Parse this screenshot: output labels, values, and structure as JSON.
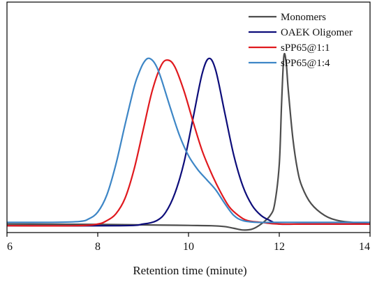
{
  "chart_data": {
    "type": "line",
    "xlabel": "Retention time (minute)",
    "ylabel": "",
    "xlim": [
      6,
      14
    ],
    "ylim": [
      -0.05,
      1.3
    ],
    "xticks": [
      "6",
      "8",
      "10",
      "12",
      "14"
    ],
    "grid": false,
    "legend_position": "top-right",
    "series": [
      {
        "name": "Monomers",
        "color": "#4d4d4d",
        "x": [
          6.0,
          8.0,
          9.0,
          10.0,
          10.5,
          10.8,
          11.0,
          11.2,
          11.4,
          11.6,
          11.8,
          11.9,
          12.0,
          12.05,
          12.1,
          12.15,
          12.2,
          12.3,
          12.4,
          12.5,
          12.7,
          13.0,
          13.3,
          13.6,
          14.0
        ],
        "y": [
          0.0,
          -0.002,
          -0.005,
          -0.008,
          -0.01,
          -0.015,
          -0.025,
          -0.035,
          -0.03,
          0.0,
          0.05,
          0.12,
          0.35,
          0.7,
          0.98,
          0.95,
          0.78,
          0.5,
          0.32,
          0.22,
          0.12,
          0.05,
          0.02,
          0.01,
          0.0
        ]
      },
      {
        "name": "OAEK Oligomer",
        "color": "#0d0d7a",
        "x": [
          6.0,
          8.5,
          9.0,
          9.3,
          9.5,
          9.7,
          9.9,
          10.1,
          10.3,
          10.45,
          10.6,
          10.8,
          11.0,
          11.2,
          11.4,
          11.6,
          11.8,
          12.0,
          12.5,
          13.0,
          14.0
        ],
        "y": [
          -0.01,
          -0.01,
          0.0,
          0.02,
          0.07,
          0.18,
          0.36,
          0.62,
          0.88,
          0.97,
          0.9,
          0.65,
          0.4,
          0.22,
          0.11,
          0.05,
          0.02,
          0.0,
          0.0,
          0.0,
          0.0
        ]
      },
      {
        "name": "sPP65@1:1",
        "color": "#e0191e",
        "x": [
          6.0,
          7.5,
          8.0,
          8.2,
          8.4,
          8.6,
          8.8,
          9.0,
          9.2,
          9.4,
          9.55,
          9.7,
          9.9,
          10.1,
          10.3,
          10.5,
          10.7,
          10.9,
          11.1,
          11.3,
          11.6,
          12.0,
          13.0,
          14.0
        ],
        "y": [
          -0.01,
          -0.01,
          0.0,
          0.02,
          0.06,
          0.15,
          0.32,
          0.55,
          0.78,
          0.93,
          0.96,
          0.92,
          0.78,
          0.6,
          0.43,
          0.3,
          0.19,
          0.1,
          0.05,
          0.02,
          0.01,
          0.0,
          0.0,
          0.0
        ]
      },
      {
        "name": "sPP65@1:4",
        "color": "#3d86c6",
        "x": [
          6.0,
          7.0,
          7.6,
          7.8,
          8.0,
          8.2,
          8.4,
          8.6,
          8.8,
          8.9,
          9.0,
          9.1,
          9.2,
          9.3,
          9.4,
          9.6,
          9.8,
          10.0,
          10.2,
          10.4,
          10.6,
          10.8,
          11.0,
          11.2,
          11.5,
          12.0,
          13.0,
          14.0
        ],
        "y": [
          0.01,
          0.01,
          0.015,
          0.03,
          0.07,
          0.17,
          0.35,
          0.58,
          0.8,
          0.88,
          0.94,
          0.97,
          0.96,
          0.92,
          0.85,
          0.68,
          0.52,
          0.4,
          0.32,
          0.26,
          0.2,
          0.12,
          0.05,
          0.02,
          0.01,
          0.01,
          0.01,
          0.01
        ]
      }
    ]
  }
}
